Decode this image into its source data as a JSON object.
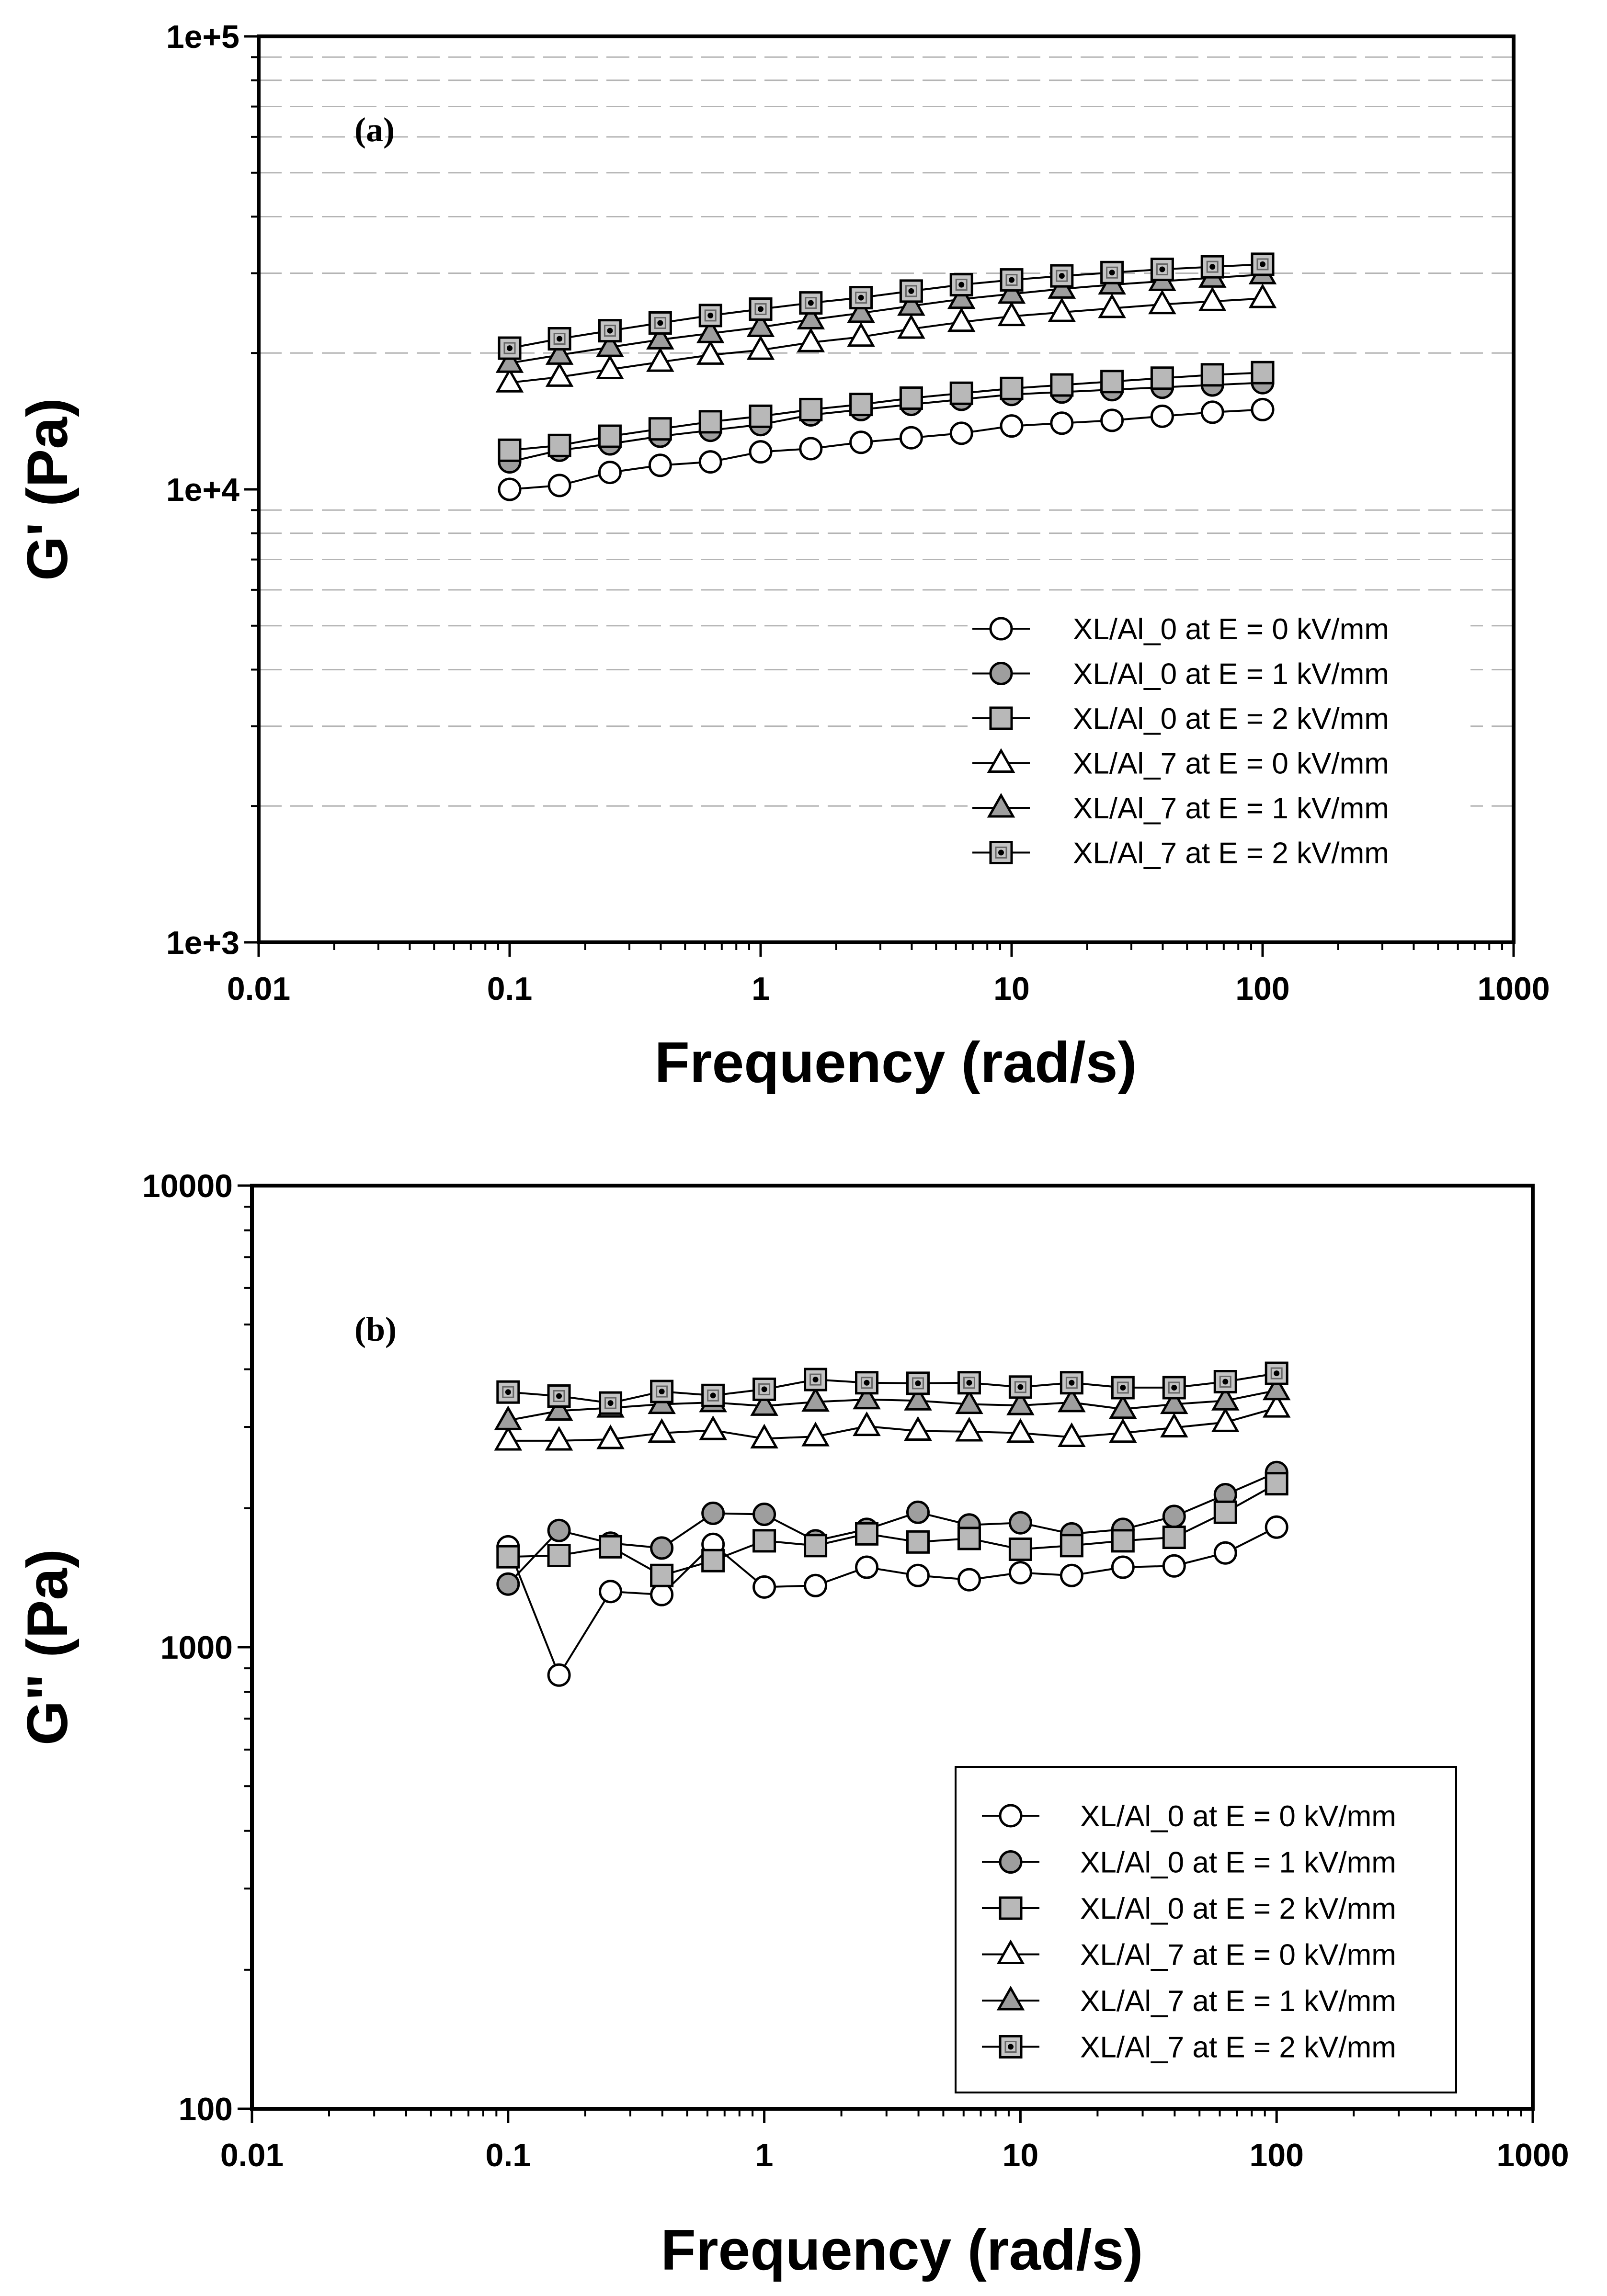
{
  "chart_data": [
    {
      "type": "line",
      "panel_label": "(a)",
      "xlabel": "Frequency (rad/s)",
      "ylabel": "G' (Pa)",
      "xscale": "log",
      "yscale": "log",
      "xlim": [
        0.01,
        1000
      ],
      "ylim": [
        1000,
        100000
      ],
      "x_ticks": [
        "0.01",
        "0.1",
        "1",
        "10",
        "100",
        "1000"
      ],
      "y_ticks": [
        "1e+3",
        "1e+4",
        "1e+5"
      ],
      "grid": "dashed horizontal at minor log ticks",
      "legend_position": "bottom-right",
      "legend_box": false,
      "x": [
        0.1,
        0.158,
        0.251,
        0.398,
        0.631,
        1,
        1.585,
        2.512,
        3.981,
        6.31,
        10,
        15.85,
        25.12,
        39.81,
        63.1,
        100
      ],
      "series": [
        {
          "name": "XL/Al_0 at E = 0 kV/mm",
          "marker": "circle",
          "fill": "#ffffff",
          "values": [
            10000,
            10200,
            10900,
            11300,
            11500,
            12100,
            12300,
            12700,
            13000,
            13300,
            13800,
            14000,
            14200,
            14500,
            14800,
            15000
          ]
        },
        {
          "name": "XL/Al_0 at E = 1 kV/mm",
          "marker": "circle",
          "fill": "#9e9e9e",
          "values": [
            11500,
            12200,
            12600,
            13100,
            13500,
            13900,
            14600,
            15000,
            15400,
            15800,
            16200,
            16400,
            16600,
            16800,
            17000,
            17200
          ]
        },
        {
          "name": "XL/Al_0 at E = 2 kV/mm",
          "marker": "square",
          "fill": "#b8b8b8",
          "values": [
            12200,
            12500,
            13100,
            13600,
            14100,
            14500,
            15000,
            15400,
            15900,
            16300,
            16700,
            17000,
            17300,
            17600,
            17900,
            18100
          ]
        },
        {
          "name": "XL/Al_7 at E = 0 kV/mm",
          "marker": "triangle",
          "fill": "#ffffff",
          "values": [
            17200,
            17700,
            18400,
            19100,
            19800,
            20300,
            21100,
            21700,
            22600,
            23400,
            24100,
            24600,
            25100,
            25600,
            26000,
            26400
          ]
        },
        {
          "name": "XL/Al_7 at E = 1 kV/mm",
          "marker": "triangle",
          "fill": "#9e9e9e",
          "values": [
            19000,
            19800,
            20600,
            21400,
            22100,
            22800,
            23700,
            24500,
            25400,
            26300,
            27000,
            27700,
            28300,
            28800,
            29300,
            29800
          ]
        },
        {
          "name": "XL/Al_7 at E = 2 kV/mm",
          "marker": "square-dot",
          "fill": "#c4c4c4",
          "values": [
            20500,
            21500,
            22400,
            23300,
            24200,
            25000,
            25800,
            26500,
            27400,
            28300,
            29000,
            29600,
            30100,
            30600,
            31000,
            31400
          ]
        }
      ]
    },
    {
      "type": "line",
      "panel_label": "(b)",
      "xlabel": "Frequency (rad/s)",
      "ylabel": "G\" (Pa)",
      "xscale": "log",
      "yscale": "log",
      "xlim": [
        0.01,
        1000
      ],
      "ylim": [
        100,
        10000
      ],
      "x_ticks": [
        "0.01",
        "0.1",
        "1",
        "10",
        "100",
        "1000"
      ],
      "y_ticks": [
        "100",
        "1000",
        "10000"
      ],
      "grid": "off",
      "legend_position": "bottom-right",
      "legend_box": true,
      "x": [
        0.1,
        0.158,
        0.251,
        0.398,
        0.631,
        1,
        1.585,
        2.512,
        3.981,
        6.31,
        10,
        15.85,
        25.12,
        39.81,
        63.1,
        100
      ],
      "series": [
        {
          "name": "XL/Al_0 at E = 0 kV/mm",
          "marker": "circle",
          "fill": "#ffffff",
          "values": [
            1650,
            870,
            1320,
            1300,
            1670,
            1350,
            1360,
            1490,
            1430,
            1400,
            1450,
            1430,
            1490,
            1500,
            1600,
            1820
          ]
        },
        {
          "name": "XL/Al_0 at E = 1 kV/mm",
          "marker": "circle",
          "fill": "#9e9e9e",
          "values": [
            1370,
            1790,
            1680,
            1640,
            1950,
            1940,
            1700,
            1800,
            1960,
            1840,
            1860,
            1760,
            1800,
            1920,
            2140,
            2390
          ]
        },
        {
          "name": "XL/Al_0 at E = 2 kV/mm",
          "marker": "square",
          "fill": "#b8b8b8",
          "values": [
            1570,
            1580,
            1650,
            1430,
            1540,
            1700,
            1660,
            1760,
            1690,
            1720,
            1630,
            1660,
            1700,
            1730,
            1960,
            2260
          ]
        },
        {
          "name": "XL/Al_7 at E = 0 kV/mm",
          "marker": "triangle",
          "fill": "#ffffff",
          "values": [
            2800,
            2800,
            2820,
            2910,
            2950,
            2830,
            2860,
            3010,
            2940,
            2930,
            2910,
            2850,
            2910,
            2990,
            3070,
            3300
          ]
        },
        {
          "name": "XL/Al_7 at E = 1 kV/mm",
          "marker": "triangle",
          "fill": "#9e9e9e",
          "values": [
            3100,
            3250,
            3300,
            3360,
            3390,
            3330,
            3400,
            3440,
            3420,
            3360,
            3340,
            3390,
            3280,
            3360,
            3420,
            3600
          ]
        },
        {
          "name": "XL/Al_7 at E = 2 kV/mm",
          "marker": "square-dot",
          "fill": "#c4c4c4",
          "values": [
            3570,
            3500,
            3380,
            3580,
            3510,
            3620,
            3800,
            3740,
            3730,
            3740,
            3660,
            3740,
            3650,
            3650,
            3760,
            3920
          ]
        }
      ]
    }
  ]
}
